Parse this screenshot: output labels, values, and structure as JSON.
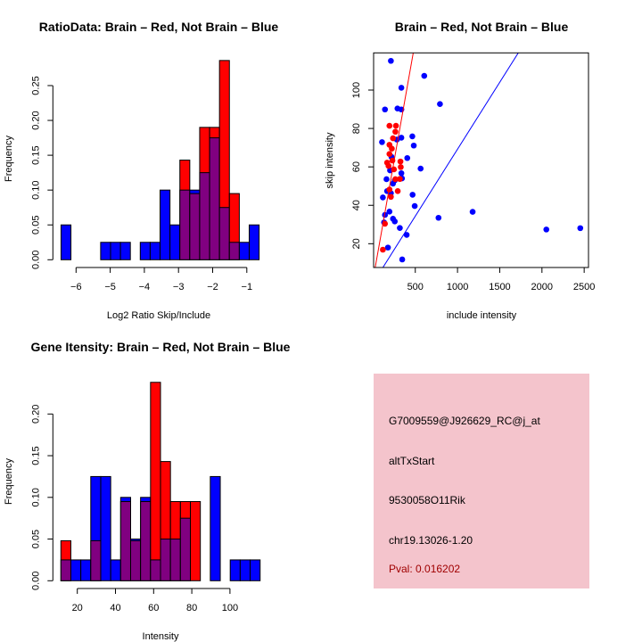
{
  "chart_data": [
    {
      "type": "bar",
      "subtype": "overlaid-histogram",
      "title": "RatioData: Brain – Red, Not Brain – Blue",
      "xlabel": "Log2 Ratio Skip/Include",
      "ylabel": "Frequency",
      "xticks": [
        -6,
        -5,
        -4,
        -3,
        -2,
        -1
      ],
      "xtick_labels": [
        "−6",
        "−5",
        "−4",
        "−3",
        "−2",
        "−1"
      ],
      "yticks": [
        0,
        0.05,
        0.1,
        0.15,
        0.2,
        0.25
      ],
      "ytick_labels": [
        "0.00",
        "0.05",
        "0.10",
        "0.15",
        "0.20",
        "0.25"
      ],
      "bin_start": -6.44,
      "bin_width": 0.29,
      "series": [
        {
          "name": "Not Brain",
          "color": "#0000ff",
          "values": [
            0.05,
            0,
            0,
            0,
            0.025,
            0.025,
            0.025,
            0,
            0.025,
            0.025,
            0.1,
            0.05,
            0.1,
            0.1,
            0.125,
            0.175,
            0.075,
            0.025,
            0.025,
            0.05
          ]
        },
        {
          "name": "Brain",
          "color": "#ff0000",
          "values": [
            0,
            0,
            0,
            0,
            0,
            0,
            0,
            0,
            0,
            0,
            0,
            0,
            0.143,
            0.095,
            0.19,
            0.19,
            0.286,
            0.095,
            0,
            0
          ]
        }
      ],
      "overlap_color": "#800080"
    },
    {
      "type": "scatter",
      "title": "Brain – Red, Not Brain – Blue",
      "xlabel": "include intensity",
      "ylabel": "skip intensity",
      "xlim": [
        0,
        2600
      ],
      "ylim": [
        7.6,
        119.4
      ],
      "xticks": [
        500,
        1000,
        1500,
        2000,
        2500
      ],
      "xtick_labels": [
        "500",
        "1000",
        "1500",
        "2000",
        "2500"
      ],
      "yticks": [
        20,
        40,
        60,
        80,
        100
      ],
      "ytick_labels": [
        "20",
        "40",
        "60",
        "80",
        "100"
      ],
      "series": [
        {
          "name": "Not Brain",
          "color": "#0000ff",
          "points": [
            [
              211,
              115.2
            ],
            [
              606,
              107.4
            ],
            [
              335,
              101.2
            ],
            [
              792,
              92.7
            ],
            [
              141,
              89.9
            ],
            [
              289,
              90.4
            ],
            [
              335,
              89.9
            ],
            [
              106,
              72.9
            ],
            [
              465,
              75.9
            ],
            [
              335,
              75.2
            ],
            [
              482,
              71.1
            ],
            [
              282,
              74.2
            ],
            [
              218,
              65.2
            ],
            [
              405,
              64.6
            ],
            [
              563,
              59.1
            ],
            [
              201,
              58.2
            ],
            [
              159,
              53.6
            ],
            [
              335,
              56.7
            ],
            [
              342,
              54
            ],
            [
              257,
              53
            ],
            [
              236,
              51.3
            ],
            [
              166,
              47.4
            ],
            [
              116,
              44.1
            ],
            [
              211,
              46.3
            ],
            [
              468,
              45.5
            ],
            [
              493,
              39.6
            ],
            [
              194,
              36.7
            ],
            [
              141,
              35
            ],
            [
              236,
              33
            ],
            [
              257,
              31.6
            ],
            [
              130,
              31.1
            ],
            [
              775,
              33.5
            ],
            [
              1179,
              36.6
            ],
            [
              317,
              28.2
            ],
            [
              398,
              24.6
            ],
            [
              2052,
              27.4
            ],
            [
              2454,
              28.1
            ],
            [
              345,
              11.8
            ],
            [
              176,
              18
            ]
          ]
        },
        {
          "name": "Brain",
          "color": "#ff0000",
          "points": [
            [
              194,
              81.4
            ],
            [
              271,
              81.4
            ],
            [
              264,
              78.3
            ],
            [
              236,
              74.9
            ],
            [
              194,
              71.5
            ],
            [
              222,
              69.5
            ],
            [
              194,
              66.7
            ],
            [
              166,
              62.2
            ],
            [
              229,
              63.3
            ],
            [
              324,
              62.8
            ],
            [
              183,
              60.5
            ],
            [
              328,
              59.9
            ],
            [
              247,
              58.7
            ],
            [
              264,
              53.6
            ],
            [
              317,
              53.7
            ],
            [
              194,
              48.2
            ],
            [
              211,
              44.4
            ],
            [
              292,
              47.4
            ],
            [
              141,
              30.4
            ],
            [
              116,
              16.9
            ]
          ]
        }
      ],
      "lines": [
        {
          "name": "Brain fit",
          "color": "#ff0000",
          "intercept": 1.4,
          "slope": 0.248
        },
        {
          "name": "Not Brain fit",
          "color": "#0000ff",
          "intercept": -0.5,
          "slope": 0.0697
        }
      ]
    },
    {
      "type": "bar",
      "subtype": "overlaid-histogram",
      "title": "Gene Itensity: Brain – Red, Not Brain – Blue",
      "xlabel": "Intensity",
      "ylabel": "Frequency",
      "xticks": [
        20,
        40,
        60,
        80,
        100
      ],
      "xtick_labels": [
        "20",
        "40",
        "60",
        "80",
        "100"
      ],
      "yticks": [
        0,
        0.05,
        0.1,
        0.15,
        0.2
      ],
      "ytick_labels": [
        "0.00",
        "0.05",
        "0.10",
        "0.15",
        "0.20"
      ],
      "bin_start": 11.4,
      "bin_width": 5.22,
      "series": [
        {
          "name": "Not Brain",
          "color": "#0000ff",
          "values": [
            0.025,
            0.025,
            0.025,
            0.125,
            0.125,
            0.025,
            0.1,
            0.05,
            0.1,
            0.025,
            0.05,
            0.05,
            0.075,
            0,
            0,
            0.125,
            0,
            0.025,
            0.025,
            0.025
          ]
        },
        {
          "name": "Brain",
          "color": "#ff0000",
          "values": [
            0.048,
            0,
            0,
            0.048,
            0,
            0,
            0.095,
            0.048,
            0.095,
            0.238,
            0.143,
            0.095,
            0.095,
            0.095,
            0,
            0,
            0,
            0,
            0,
            0
          ]
        }
      ],
      "overlap_color": "#800080"
    }
  ],
  "info_panel": {
    "background": "#f4c4cc",
    "probe_id": "G7009559@J926629_RC@j_at",
    "event_type": "altTxStart",
    "gene": "9530058O11Rik",
    "location": "chr19.13026-1.20",
    "pval": "Pval: 0.016202",
    "pval_color": "#a00000"
  }
}
